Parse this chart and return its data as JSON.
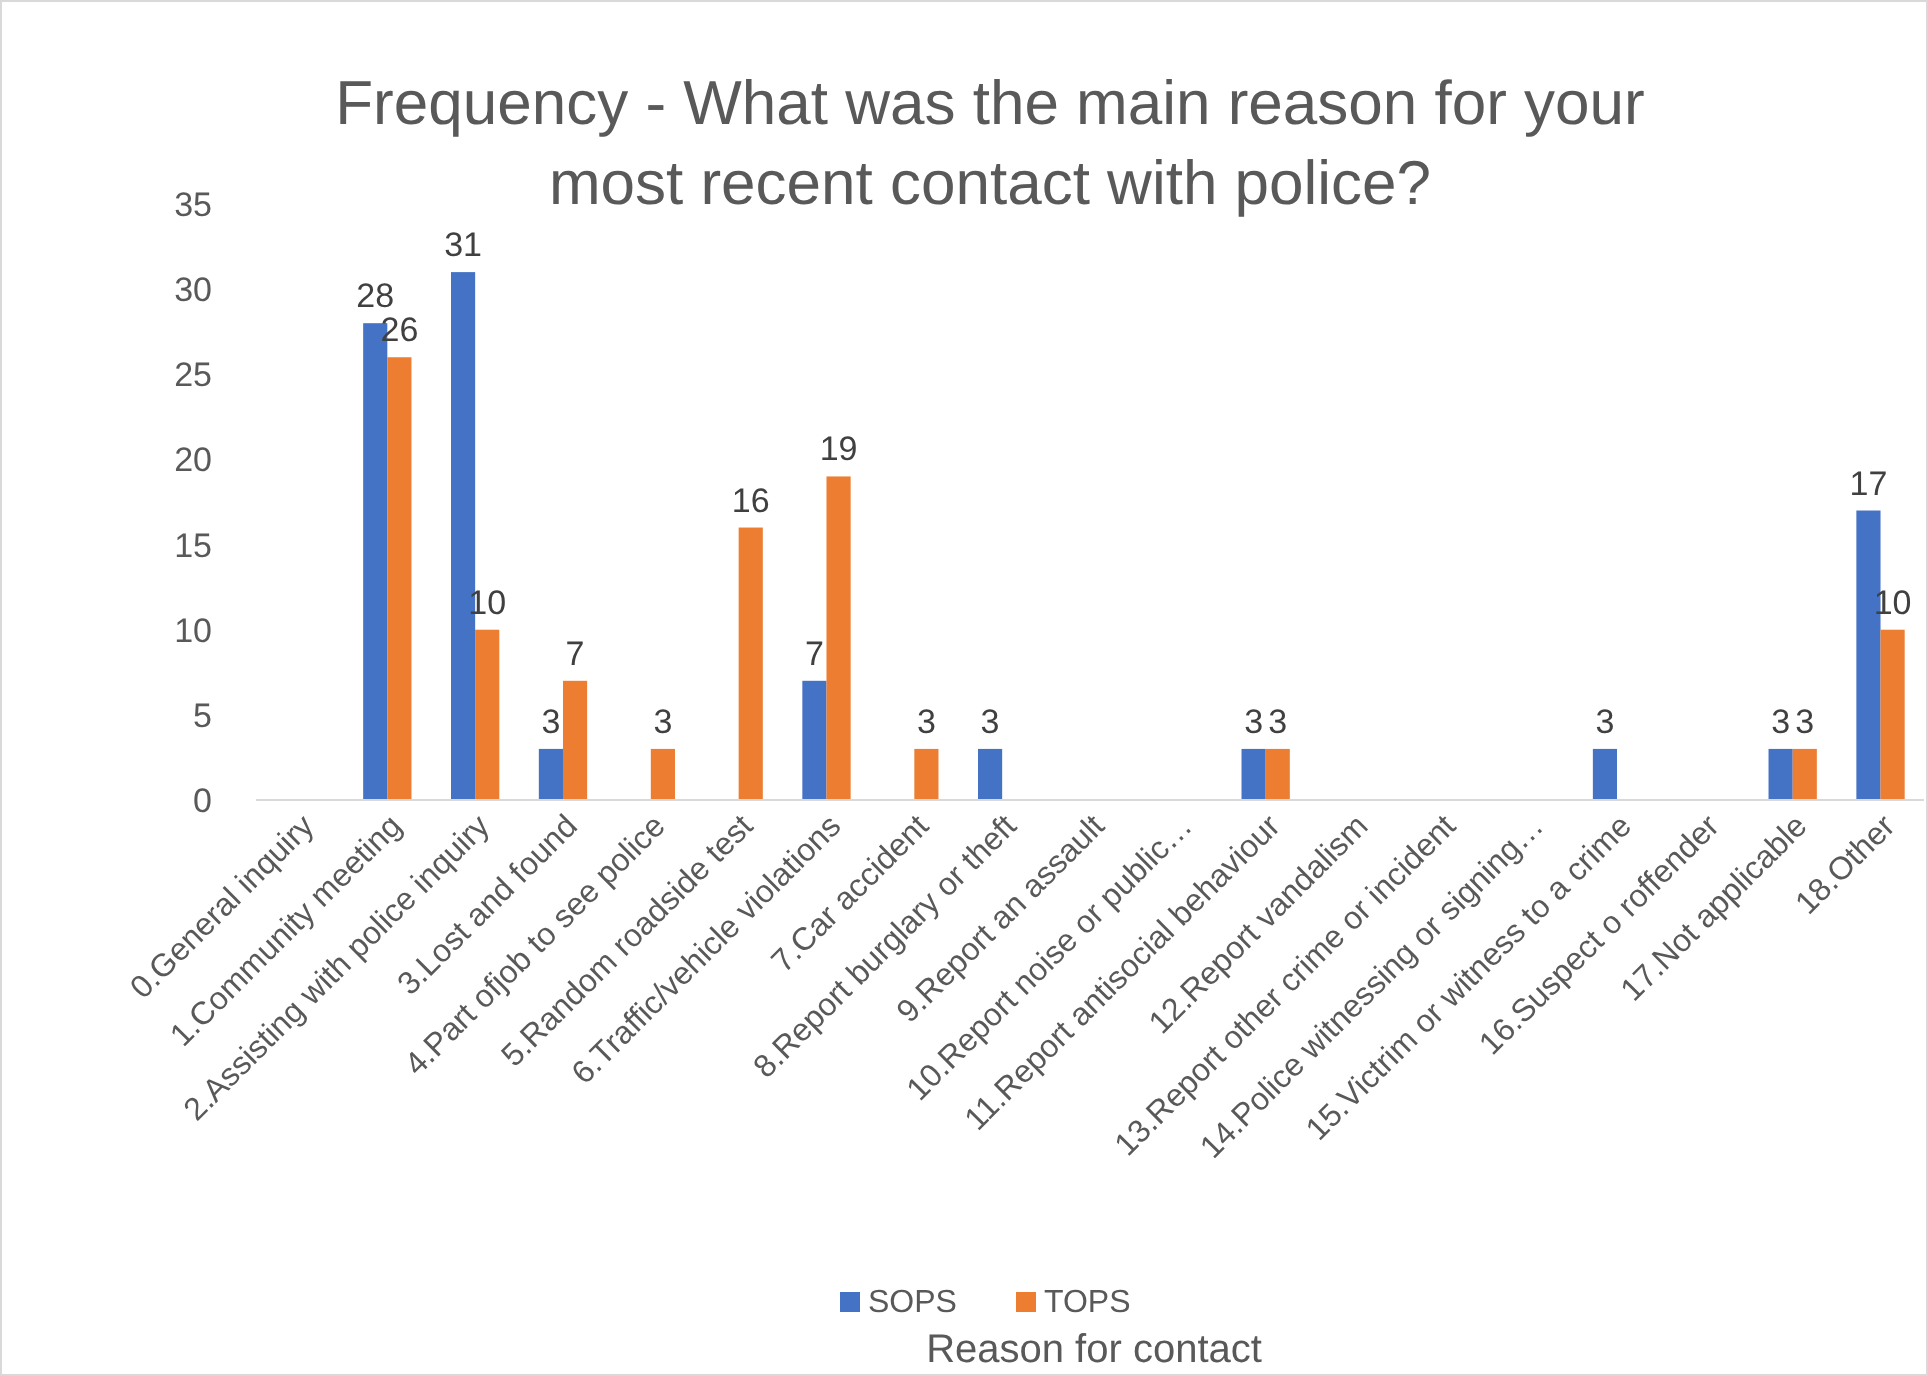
{
  "chart_data": {
    "type": "bar",
    "title": "Frequency - What was the main reason for your most recent contact with police?",
    "xlabel": "Reason for contact",
    "categories": [
      "0.General inquiry",
      "1.Community meeting",
      "2.Assisting with police inquiry",
      "3.Lost and found",
      "4.Part ofjob to see police",
      "5.Random roadside test",
      "6.Traffic/vehicle violations",
      "7.Car accident",
      "8.Report burglary or theft",
      "9.Report an assault",
      "10.Report noise or public…",
      "11.Report antisocial behaviour",
      "12.Report vandalism",
      "13.Report other crime or incident",
      "14.Police witnessing or signing…",
      "15.Victrim or witness to a crime",
      "16.Suspect o roffender",
      "17.Not applicable",
      "18.Other"
    ],
    "series": [
      {
        "name": "SOPS",
        "color": "#4472c4",
        "values": [
          null,
          28,
          31,
          3,
          null,
          null,
          7,
          null,
          3,
          null,
          null,
          3,
          null,
          null,
          null,
          3,
          null,
          3,
          17
        ]
      },
      {
        "name": "TOPS",
        "color": "#ed7d31",
        "values": [
          null,
          26,
          10,
          7,
          3,
          16,
          19,
          3,
          null,
          null,
          null,
          3,
          null,
          null,
          null,
          null,
          null,
          3,
          10
        ]
      }
    ],
    "ylim": [
      0,
      35
    ],
    "yticks": [
      0,
      5,
      10,
      15,
      20,
      25,
      30,
      35
    ],
    "data_labels": true,
    "legend": "bottom"
  }
}
